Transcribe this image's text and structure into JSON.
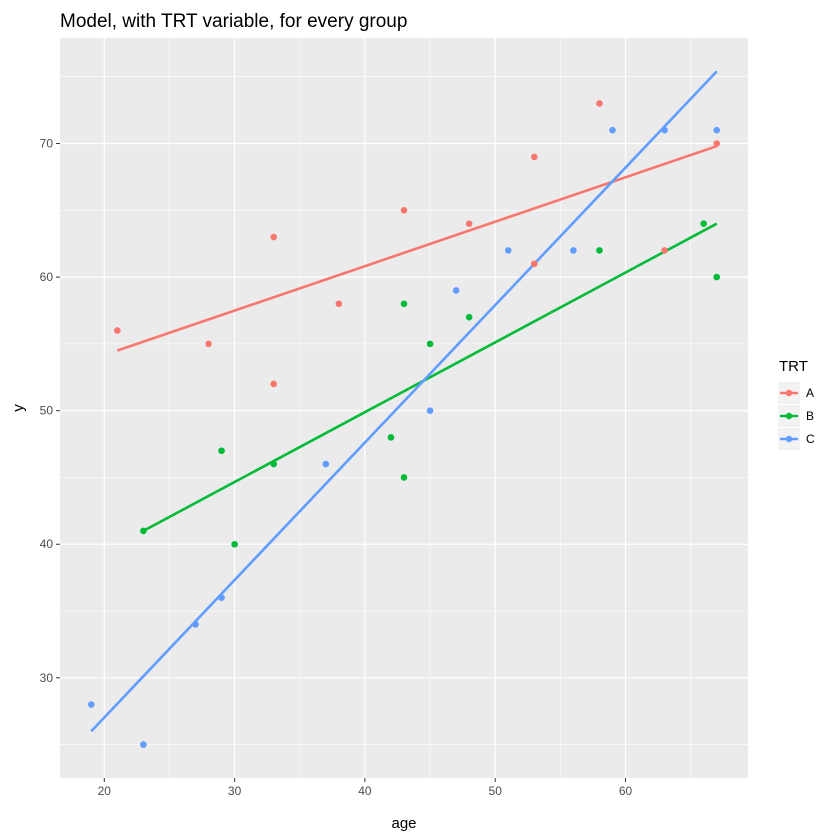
{
  "chart_data": {
    "type": "scatter",
    "title": "Model, with TRT variable, for every group",
    "xlabel": "age",
    "ylabel": "y",
    "xlim": [
      16.6,
      69.4
    ],
    "ylim": [
      22.5,
      77.9
    ],
    "x_ticks": [
      20,
      30,
      40,
      50,
      60
    ],
    "y_ticks": [
      30,
      40,
      50,
      60,
      70
    ],
    "grid": true,
    "legend": {
      "title": "TRT",
      "position": "right"
    },
    "panel_color": "#ebebeb",
    "series": [
      {
        "name": "A",
        "color": "#f8766d",
        "points": [
          [
            21,
            56
          ],
          [
            28,
            55
          ],
          [
            33,
            63
          ],
          [
            33,
            52
          ],
          [
            38,
            58
          ],
          [
            43,
            65
          ],
          [
            48,
            64
          ],
          [
            53,
            69
          ],
          [
            53,
            61
          ],
          [
            58,
            73
          ],
          [
            63,
            62
          ],
          [
            67,
            70
          ]
        ],
        "fit": [
          [
            21,
            54.5
          ],
          [
            67,
            69.8
          ]
        ]
      },
      {
        "name": "B",
        "color": "#00ba38",
        "points": [
          [
            23,
            41
          ],
          [
            29,
            47
          ],
          [
            30,
            40
          ],
          [
            33,
            46
          ],
          [
            42,
            48
          ],
          [
            43,
            58
          ],
          [
            43,
            45
          ],
          [
            45,
            55
          ],
          [
            48,
            57
          ],
          [
            58,
            62
          ],
          [
            66,
            64
          ],
          [
            67,
            60
          ]
        ],
        "fit": [
          [
            23,
            41
          ],
          [
            67,
            64
          ]
        ]
      },
      {
        "name": "C",
        "color": "#619cff",
        "points": [
          [
            19,
            28
          ],
          [
            23,
            25
          ],
          [
            27,
            34
          ],
          [
            29,
            36
          ],
          [
            37,
            46
          ],
          [
            45,
            50
          ],
          [
            47,
            59
          ],
          [
            51,
            62
          ],
          [
            56,
            62
          ],
          [
            59,
            71
          ],
          [
            63,
            71
          ],
          [
            67,
            71
          ]
        ],
        "fit": [
          [
            19,
            26
          ],
          [
            67,
            75.4
          ]
        ]
      }
    ]
  }
}
